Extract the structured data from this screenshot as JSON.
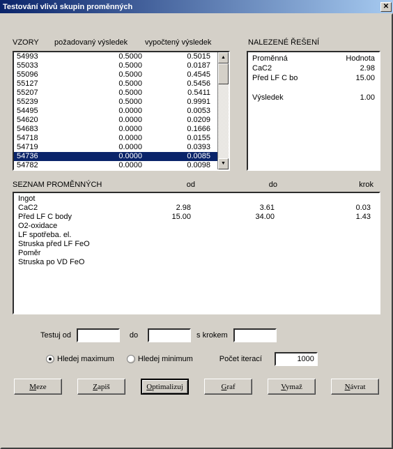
{
  "title": "Testování vlivů skupin proměnných",
  "headers": {
    "vzory": "VZORY",
    "pozadovany": "požadovaný výsledek",
    "vypocteny": "vypočtený výsledek",
    "nalezene": "NALEZENÉ ŘEŠENÍ"
  },
  "vzory": [
    {
      "id": "54993",
      "req": "0.5000",
      "comp": "0.5015"
    },
    {
      "id": "55033",
      "req": "0.5000",
      "comp": "0.0187"
    },
    {
      "id": "55096",
      "req": "0.5000",
      "comp": "0.4545"
    },
    {
      "id": "55127",
      "req": "0.5000",
      "comp": "0.5456"
    },
    {
      "id": "55207",
      "req": "0.5000",
      "comp": "0.5411"
    },
    {
      "id": "55239",
      "req": "0.5000",
      "comp": "0.9991"
    },
    {
      "id": "54495",
      "req": "0.0000",
      "comp": "0.0053"
    },
    {
      "id": "54620",
      "req": "0.0000",
      "comp": "0.0209"
    },
    {
      "id": "54683",
      "req": "0.0000",
      "comp": "0.1666"
    },
    {
      "id": "54718",
      "req": "0.0000",
      "comp": "0.0155"
    },
    {
      "id": "54719",
      "req": "0.0000",
      "comp": "0.0393"
    },
    {
      "id": "54736",
      "req": "0.0000",
      "comp": "0.0085",
      "sel": true
    },
    {
      "id": "54782",
      "req": "0.0000",
      "comp": "0.0098"
    }
  ],
  "solution": {
    "hdr_var": "Proměnná",
    "hdr_val": "Hodnota",
    "rows": [
      {
        "lbl": "CaC2",
        "val": "2.98"
      },
      {
        "lbl": "Před LF C bo",
        "val": "15.00"
      }
    ],
    "result_lbl": "Výsledek",
    "result_val": "1.00"
  },
  "vars_hdr": {
    "title": "SEZNAM PROMĚNNÝCH",
    "od": "od",
    "do": "do",
    "krok": "krok"
  },
  "vars": [
    {
      "n": "Ingot"
    },
    {
      "n": "CaC2",
      "od": "2.98",
      "do": "3.61",
      "kr": "0.03"
    },
    {
      "n": "Před LF C body",
      "od": "15.00",
      "do": "34.00",
      "kr": "1.43"
    },
    {
      "n": "O2-oxidace"
    },
    {
      "n": "LF spotřeba. el."
    },
    {
      "n": "Struska před LF FeO"
    },
    {
      "n": "Poměr"
    },
    {
      "n": "Struska po VD FeO"
    }
  ],
  "form": {
    "testuj_od": "Testuj od",
    "do": "do",
    "s_krokem": "s krokem",
    "hledej_max": "Hledej maximum",
    "hledej_min": "Hledej minimum",
    "pocet_iteraci": "Počet iterací",
    "iter_val": "1000"
  },
  "buttons": {
    "meze": "Meze",
    "zapis": "Zapiš",
    "optimalizuj": "Optimalizuj",
    "graf": "Graf",
    "vymaz": "Vymaž",
    "navrat": "Návrat"
  }
}
